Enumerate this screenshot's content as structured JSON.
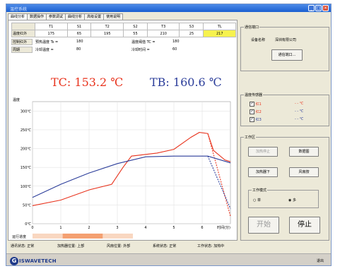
{
  "window": {
    "title": "温控系统"
  },
  "tabs": [
    "曲线分析",
    "数据操作",
    "参数调试",
    "曲线分析",
    "高级设置",
    "使用说明"
  ],
  "temp_table": {
    "headers": [
      "",
      "T1",
      "S1",
      "T2",
      "S2",
      "T3",
      "S3",
      "TL"
    ],
    "row": {
      "label": "温度红外",
      "values": [
        "175",
        "65",
        "195",
        "55",
        "210",
        "25",
        "217"
      ]
    }
  },
  "info_rows": [
    {
      "label": "控制红外",
      "a_label": "预热温度 Ts =",
      "a_value": "180",
      "b_label": "温度阈值 TC =",
      "b_value": "180"
    },
    {
      "label": "周期",
      "a_label": "冷却温度 =",
      "a_value": "80",
      "b_label": "冷却时间 =",
      "b_value": "60"
    }
  ],
  "readouts": {
    "tc": "TC: 153.2 ℃",
    "tb": "TB: 160.6 ℃"
  },
  "chart_data": {
    "type": "line",
    "ylabel": "温度",
    "xlabel": "时间(分)",
    "y_ticks": [
      "300℃",
      "250℃",
      "200℃",
      "150℃",
      "100℃",
      "50℃",
      "0℃"
    ],
    "x_ticks": [
      "0",
      "1",
      "2",
      "3",
      "4",
      "5",
      "6"
    ],
    "xlim": [
      0,
      7
    ],
    "ylim": [
      0,
      325
    ],
    "grid": true,
    "series": [
      {
        "color": "#e8331d",
        "dash": false,
        "points": [
          [
            0,
            48
          ],
          [
            1,
            63
          ],
          [
            2,
            90
          ],
          [
            2.8,
            105
          ],
          [
            3.2,
            150
          ],
          [
            3.5,
            180
          ],
          [
            4.4,
            188
          ],
          [
            5.0,
            198
          ],
          [
            5.6,
            230
          ],
          [
            5.9,
            243
          ],
          [
            6.2,
            240
          ],
          [
            6.4,
            195
          ],
          [
            6.8,
            170
          ],
          [
            7.0,
            165
          ]
        ]
      },
      {
        "color": "#e8331d",
        "dash": true,
        "points": [
          [
            6.2,
            240
          ],
          [
            6.6,
            130
          ],
          [
            7.0,
            20
          ]
        ]
      },
      {
        "color": "#2b3d9a",
        "dash": false,
        "points": [
          [
            0,
            70
          ],
          [
            1,
            105
          ],
          [
            2,
            135
          ],
          [
            3,
            160
          ],
          [
            4,
            178
          ],
          [
            5,
            180
          ],
          [
            6.2,
            180
          ],
          [
            7.0,
            162
          ]
        ]
      },
      {
        "color": "#2b3d9a",
        "dash": true,
        "points": [
          [
            6.2,
            180
          ],
          [
            6.6,
            110
          ],
          [
            7.0,
            40
          ]
        ]
      }
    ]
  },
  "progress": {
    "label": "运行进度",
    "segments": [
      {
        "color": "#f9d7c1",
        "fraction": 0.15
      },
      {
        "color": "#f4a071",
        "fraction": 0.2
      },
      {
        "color": "#f9d7c1",
        "fraction": 0.15
      }
    ]
  },
  "status": [
    "通讯状态: 正常",
    "加热器位置: 上部",
    "风扇位置: 外部",
    "系统状态: 正常",
    "工作状态: 加热中"
  ],
  "right": {
    "group1": {
      "title": "通信端口",
      "company_label": "设备名称",
      "company": "深圳有限公司",
      "button": "通信端口..."
    },
    "group2": {
      "title": "温度传感器",
      "items": [
        {
          "name": "红1",
          "value": "- - ℃"
        },
        {
          "name": "红2",
          "value": "- - ℃"
        },
        {
          "name": "红3",
          "value": "- - ℃"
        }
      ]
    },
    "group3": {
      "title": "工作区",
      "buttons": [
        "加热停止",
        "数据图",
        "加热器下",
        "风扇按"
      ],
      "mode_title": "工作模式",
      "mode_options": [
        "单",
        "多"
      ],
      "start": "开始",
      "stop": "停止"
    }
  },
  "footer": {
    "logo_text": "ISWAVETECH",
    "right": "退出"
  },
  "colors": {
    "red": "#e8331d",
    "blue": "#2b3d9a",
    "highlight": "#f6f24e"
  }
}
